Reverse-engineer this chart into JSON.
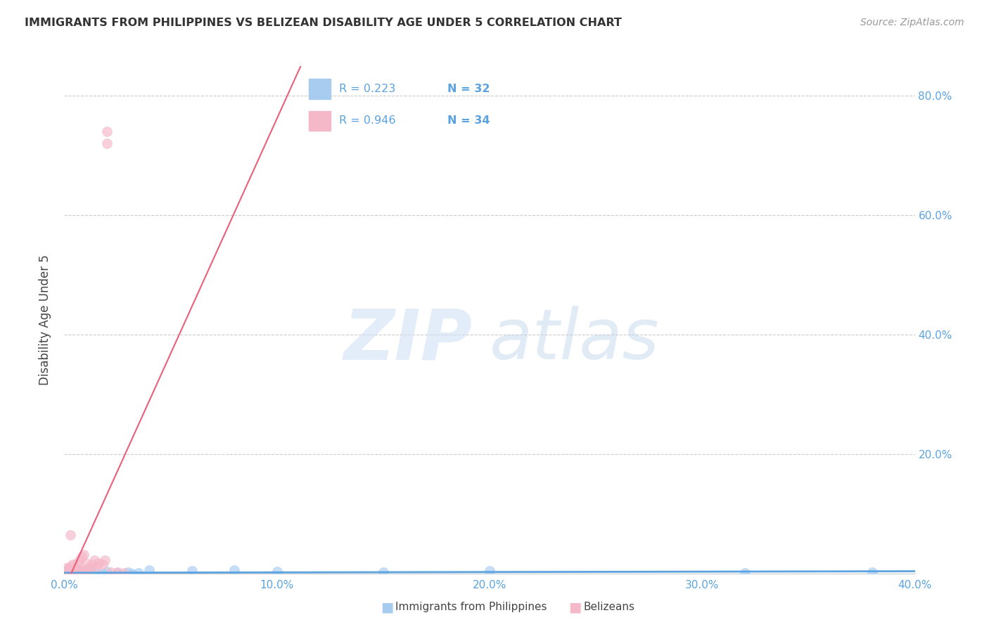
{
  "title": "IMMIGRANTS FROM PHILIPPINES VS BELIZEAN DISABILITY AGE UNDER 5 CORRELATION CHART",
  "source": "Source: ZipAtlas.com",
  "ylabel_label": "Disability Age Under 5",
  "xlim": [
    0.0,
    0.4
  ],
  "ylim": [
    0.0,
    0.85
  ],
  "x_ticks": [
    0.0,
    0.1,
    0.2,
    0.3,
    0.4
  ],
  "x_tick_labels": [
    "0.0%",
    "10.0%",
    "20.0%",
    "30.0%",
    "40.0%"
  ],
  "y_ticks": [
    0.2,
    0.4,
    0.6,
    0.8
  ],
  "y_tick_labels": [
    "20.0%",
    "40.0%",
    "60.0%",
    "80.0%"
  ],
  "legend_r1": "R = 0.223",
  "legend_n1": "N = 32",
  "legend_r2": "R = 0.946",
  "legend_n2": "N = 34",
  "color_blue": "#a8ccf0",
  "color_pink": "#f5b8c8",
  "color_blue_line": "#5ba3e0",
  "color_pink_line": "#e8607a",
  "color_rval": "#5ba3e0",
  "color_nval": "#e85020",
  "color_title": "#333333",
  "color_source": "#999999",
  "color_right_axis": "#5ba3e0",
  "color_ylabel": "#444444",
  "phil_x": [
    0.001,
    0.001,
    0.002,
    0.002,
    0.003,
    0.003,
    0.003,
    0.004,
    0.004,
    0.005,
    0.005,
    0.006,
    0.007,
    0.008,
    0.009,
    0.01,
    0.012,
    0.015,
    0.018,
    0.02,
    0.025,
    0.03,
    0.032,
    0.035,
    0.04,
    0.06,
    0.08,
    0.1,
    0.15,
    0.2,
    0.32,
    0.38
  ],
  "phil_y": [
    0.002,
    0.001,
    0.001,
    0.002,
    0.0,
    0.001,
    0.002,
    0.0,
    0.001,
    0.001,
    0.002,
    0.001,
    0.0,
    0.002,
    0.001,
    0.0,
    0.001,
    0.001,
    0.0,
    0.004,
    0.001,
    0.002,
    0.0,
    0.001,
    0.006,
    0.005,
    0.006,
    0.004,
    0.003,
    0.005,
    0.001,
    0.003
  ],
  "bel_x": [
    0.001,
    0.001,
    0.002,
    0.002,
    0.003,
    0.003,
    0.003,
    0.004,
    0.004,
    0.005,
    0.005,
    0.006,
    0.006,
    0.007,
    0.007,
    0.008,
    0.008,
    0.009,
    0.009,
    0.01,
    0.01,
    0.011,
    0.012,
    0.013,
    0.014,
    0.015,
    0.016,
    0.018,
    0.019,
    0.02,
    0.02,
    0.022,
    0.025,
    0.028
  ],
  "bel_y": [
    0.005,
    0.01,
    0.003,
    0.008,
    0.005,
    0.012,
    0.065,
    0.005,
    0.015,
    0.003,
    0.01,
    0.004,
    0.018,
    0.005,
    0.022,
    0.005,
    0.028,
    0.006,
    0.032,
    0.004,
    0.018,
    0.01,
    0.008,
    0.016,
    0.022,
    0.012,
    0.018,
    0.016,
    0.022,
    0.72,
    0.74,
    0.002,
    0.002,
    0.001
  ]
}
